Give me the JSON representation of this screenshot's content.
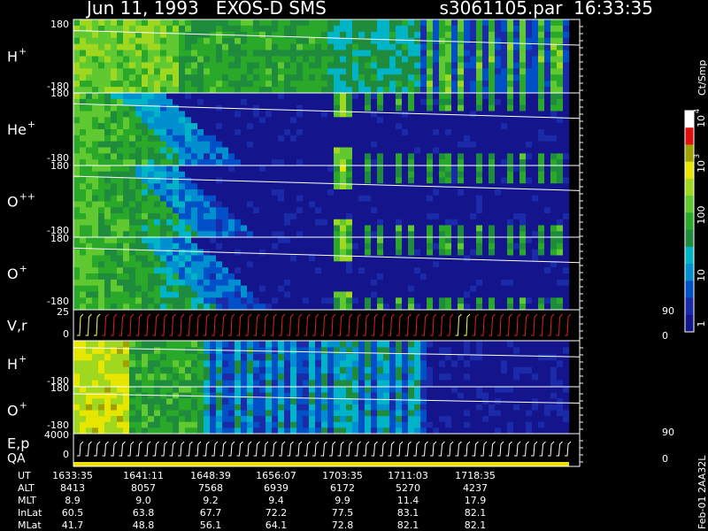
{
  "header": {
    "title": "Jun 11, 1993   EXOS-D SMS",
    "file": "s3061105.par  16:33:35"
  },
  "panels": [
    {
      "label": "H",
      "sup": "+",
      "ticks": [
        "180",
        "-180"
      ]
    },
    {
      "label": "He",
      "sup": "+",
      "ticks": [
        "180",
        "-180"
      ]
    },
    {
      "label": "O",
      "sup": "++",
      "ticks": [
        "180",
        "-180"
      ]
    },
    {
      "label": "O",
      "sup": "+",
      "ticks": [
        "180",
        "-180"
      ]
    },
    {
      "label": "V,r",
      "ticks": [
        "25",
        "0"
      ],
      "right_ticks": [
        "90",
        "0"
      ]
    },
    {
      "label": "H",
      "sup": "+",
      "ticks": [
        "-180"
      ]
    },
    {
      "label": "O",
      "sup": "+",
      "ticks": [
        "180",
        "-180"
      ]
    },
    {
      "label": "E,p",
      "label2": "QA",
      "ticks": [
        "4000",
        "0"
      ],
      "right_ticks": [
        "90",
        "0"
      ]
    }
  ],
  "colorbar": {
    "title": "Ct/Smp",
    "labels": [
      {
        "base": "10",
        "exp": "4"
      },
      {
        "base": "10",
        "exp": "3"
      },
      {
        "base": "100"
      },
      {
        "base": "10"
      },
      {
        "base": "1"
      }
    ]
  },
  "footer": {
    "rows": [
      {
        "name": "UT",
        "values": [
          "1633:35",
          "1641:11",
          "1648:39",
          "1656:07",
          "1703:35",
          "1711:03",
          "1718:35"
        ]
      },
      {
        "name": "ALT",
        "values": [
          "8413",
          "8057",
          "7568",
          "6939",
          "6172",
          "5270",
          "4237"
        ]
      },
      {
        "name": "MLT",
        "values": [
          "8.9",
          "9.0",
          "9.2",
          "9.4",
          "9.9",
          "11.4",
          "17.9"
        ]
      },
      {
        "name": "InLat",
        "values": [
          "60.5",
          "63.8",
          "67.7",
          "72.2",
          "77.5",
          "83.1",
          "82.1"
        ]
      },
      {
        "name": "MLat",
        "values": [
          "41.7",
          "48.8",
          "56.1",
          "64.1",
          "72.8",
          "82.1",
          "82.1"
        ]
      }
    ]
  },
  "stamp": "Feb-01 2AA32L"
}
